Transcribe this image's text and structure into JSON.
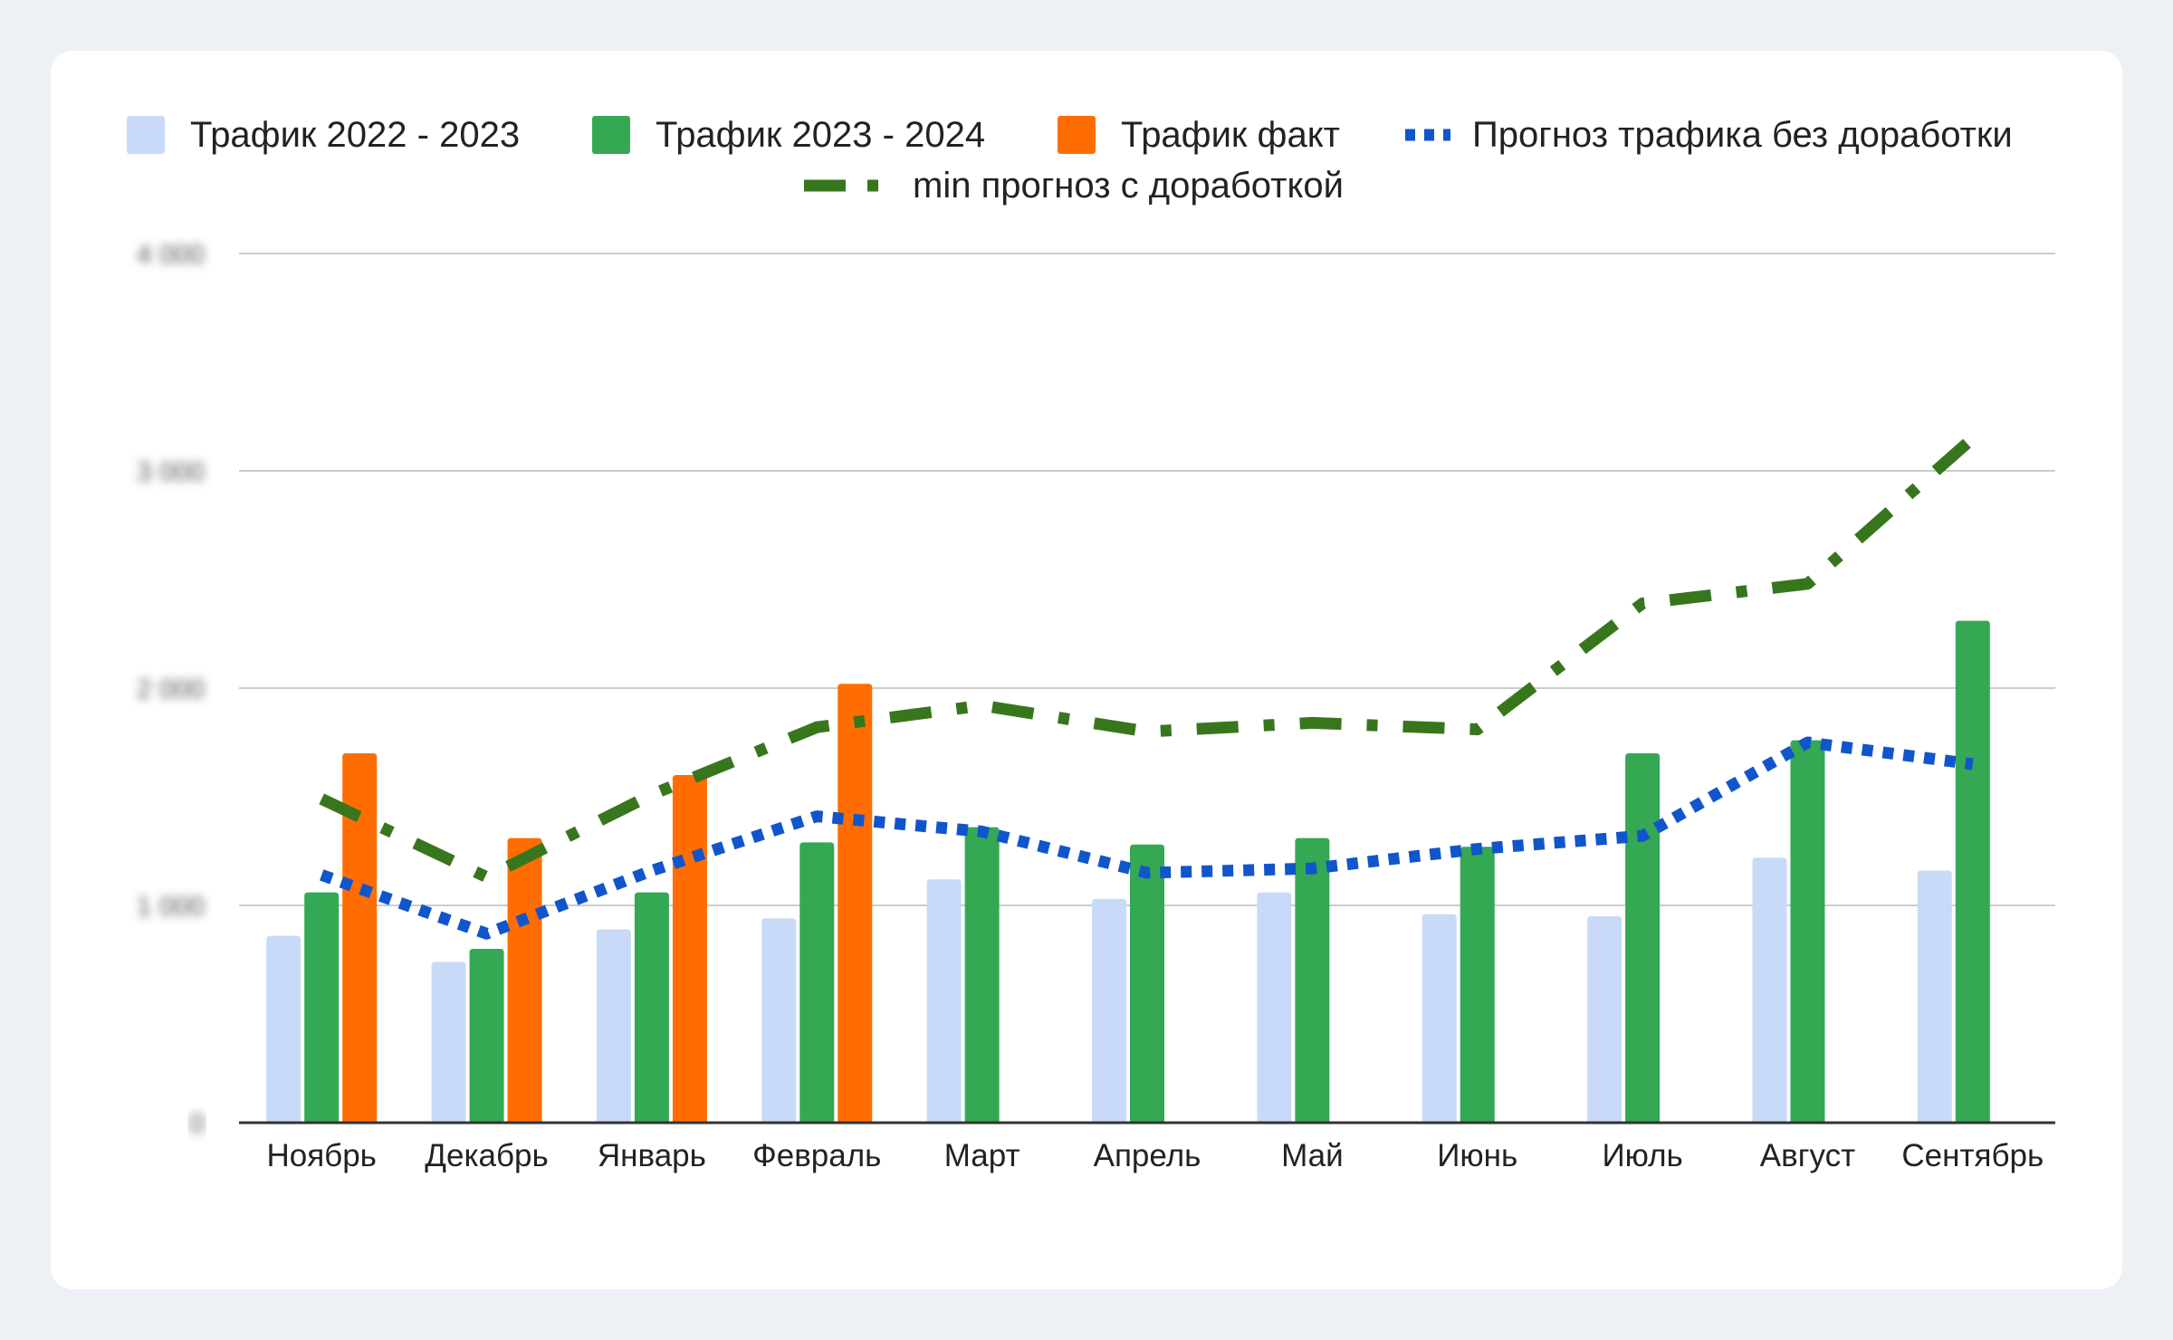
{
  "chart_data": {
    "type": "bar",
    "categories": [
      "Ноябрь",
      "Декабрь",
      "Январь",
      "Февраль",
      "Март",
      "Апрель",
      "Май",
      "Июнь",
      "Июль",
      "Август",
      "Сентябрь"
    ],
    "ylim": [
      0,
      4000
    ],
    "y_ticks": [
      0,
      1000,
      2000,
      3000,
      4000
    ],
    "y_tick_labels_blurred": true,
    "grid": true,
    "legend_position": "top",
    "bar_series": [
      {
        "name": "Трафик 2022 - 2023",
        "color": "#c9daf8",
        "values": [
          860,
          740,
          890,
          940,
          1120,
          1030,
          1060,
          960,
          950,
          1220,
          1160
        ]
      },
      {
        "name": "Трафик 2023 - 2024",
        "color": "#34a853",
        "values": [
          1060,
          800,
          1060,
          1290,
          1360,
          1280,
          1310,
          1270,
          1700,
          1760,
          2310
        ]
      },
      {
        "name": "Трафик факт",
        "color": "#ff6d01",
        "values": [
          1700,
          1310,
          1600,
          2020,
          null,
          null,
          null,
          null,
          null,
          null,
          null
        ]
      }
    ],
    "line_series": [
      {
        "name": "Прогноз трафика без доработки",
        "color": "#1155cc",
        "style": "dotted",
        "values": [
          1140,
          870,
          1160,
          1410,
          1340,
          1150,
          1170,
          1260,
          1320,
          1750,
          1650
        ]
      },
      {
        "name": "min прогноз с доработкой",
        "color": "#38761d",
        "style": "dash-dot",
        "values": [
          1490,
          1130,
          1510,
          1820,
          1920,
          1800,
          1840,
          1810,
          2390,
          2480,
          3150
        ]
      }
    ]
  }
}
